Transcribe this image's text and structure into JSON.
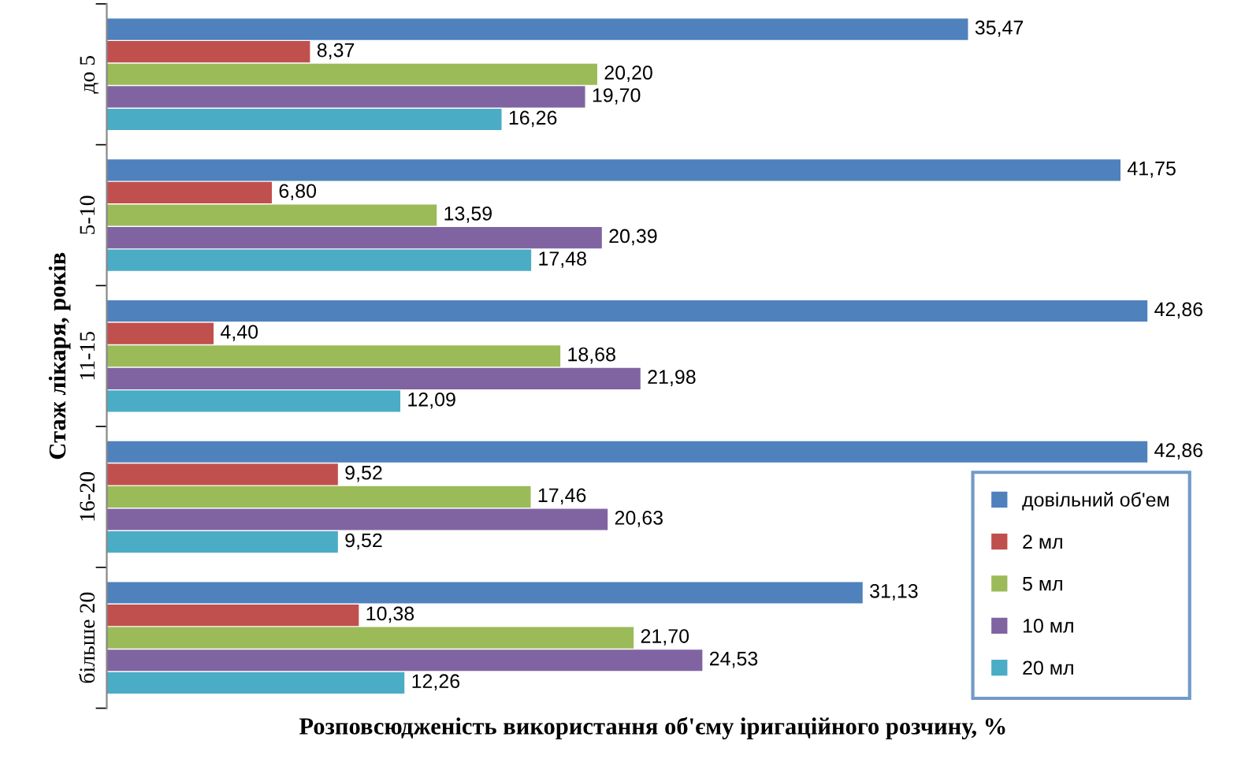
{
  "chart_data": {
    "type": "bar",
    "orientation": "horizontal",
    "xlabel": "Розповсюдженість використання об'єму іригаційного розчину, %",
    "ylabel": "Стаж лікаря, років",
    "legend": "bottom right",
    "categories": [
      "до 5",
      "5-10",
      "11-15",
      "16-20",
      "більше 20"
    ],
    "series": [
      {
        "name": "довільний об'ем",
        "color": "#4f81bd",
        "values": [
          35.47,
          41.75,
          42.86,
          42.86,
          31.13
        ],
        "value_labels": [
          "35,47",
          "41,75",
          "42,86",
          "42,86",
          "31,13"
        ]
      },
      {
        "name": "2 мл",
        "color": "#c0504d",
        "values": [
          8.37,
          6.8,
          4.4,
          9.52,
          10.38
        ],
        "value_labels": [
          "8,37",
          "6,80",
          "4,40",
          "9,52",
          "10,38"
        ]
      },
      {
        "name": "5 мл",
        "color": "#9bbb59",
        "values": [
          20.2,
          13.59,
          18.68,
          17.46,
          21.7
        ],
        "value_labels": [
          "20,20",
          "13,59",
          "18,68",
          "17,46",
          "21,70"
        ]
      },
      {
        "name": "10 мл",
        "color": "#8064a2",
        "values": [
          19.7,
          20.39,
          21.98,
          20.63,
          24.53
        ],
        "value_labels": [
          "19,70",
          "20,39",
          "21,98",
          "20,63",
          "24,53"
        ]
      },
      {
        "name": "20 мл",
        "color": "#4bacc6",
        "values": [
          16.26,
          17.48,
          12.09,
          9.52,
          12.26
        ],
        "value_labels": [
          "16,26",
          "17,48",
          "12,09",
          "9,52",
          "12,26"
        ]
      }
    ]
  }
}
